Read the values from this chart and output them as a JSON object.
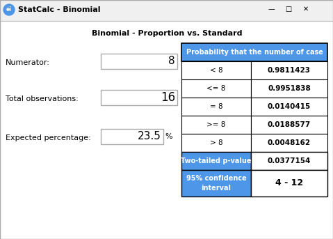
{
  "title_bar": "StatCalc - Binomial",
  "subtitle": "Binomial - Proportion vs. Standard",
  "label_numerator": "Numerator:",
  "label_total": "Total observations:",
  "label_expected": "Expected percentage:",
  "value_numerator": "8",
  "value_total": "16",
  "value_expected": "23.5",
  "percent_sign": "%",
  "table_header": "Probability that the number of case",
  "rows": [
    [
      "< 8",
      "0.9811423"
    ],
    [
      "<= 8",
      "0.9951838"
    ],
    [
      "= 8",
      "0.0140415"
    ],
    [
      ">= 8",
      "0.0188577"
    ],
    [
      "> 8",
      "0.0048162"
    ]
  ],
  "two_tailed_label": "Two-tailed p-value",
  "two_tailed_value": "0.0377154",
  "ci_label": "95% confidence\ninterval",
  "ci_value": "4 - 12",
  "blue_color": "#4D96E8",
  "white": "#FFFFFF",
  "black": "#000000",
  "bg_color": "#F0F0F0",
  "input_bg": "#FFFFFF",
  "border_light": "#AAAAAA",
  "border_dark": "#555555"
}
